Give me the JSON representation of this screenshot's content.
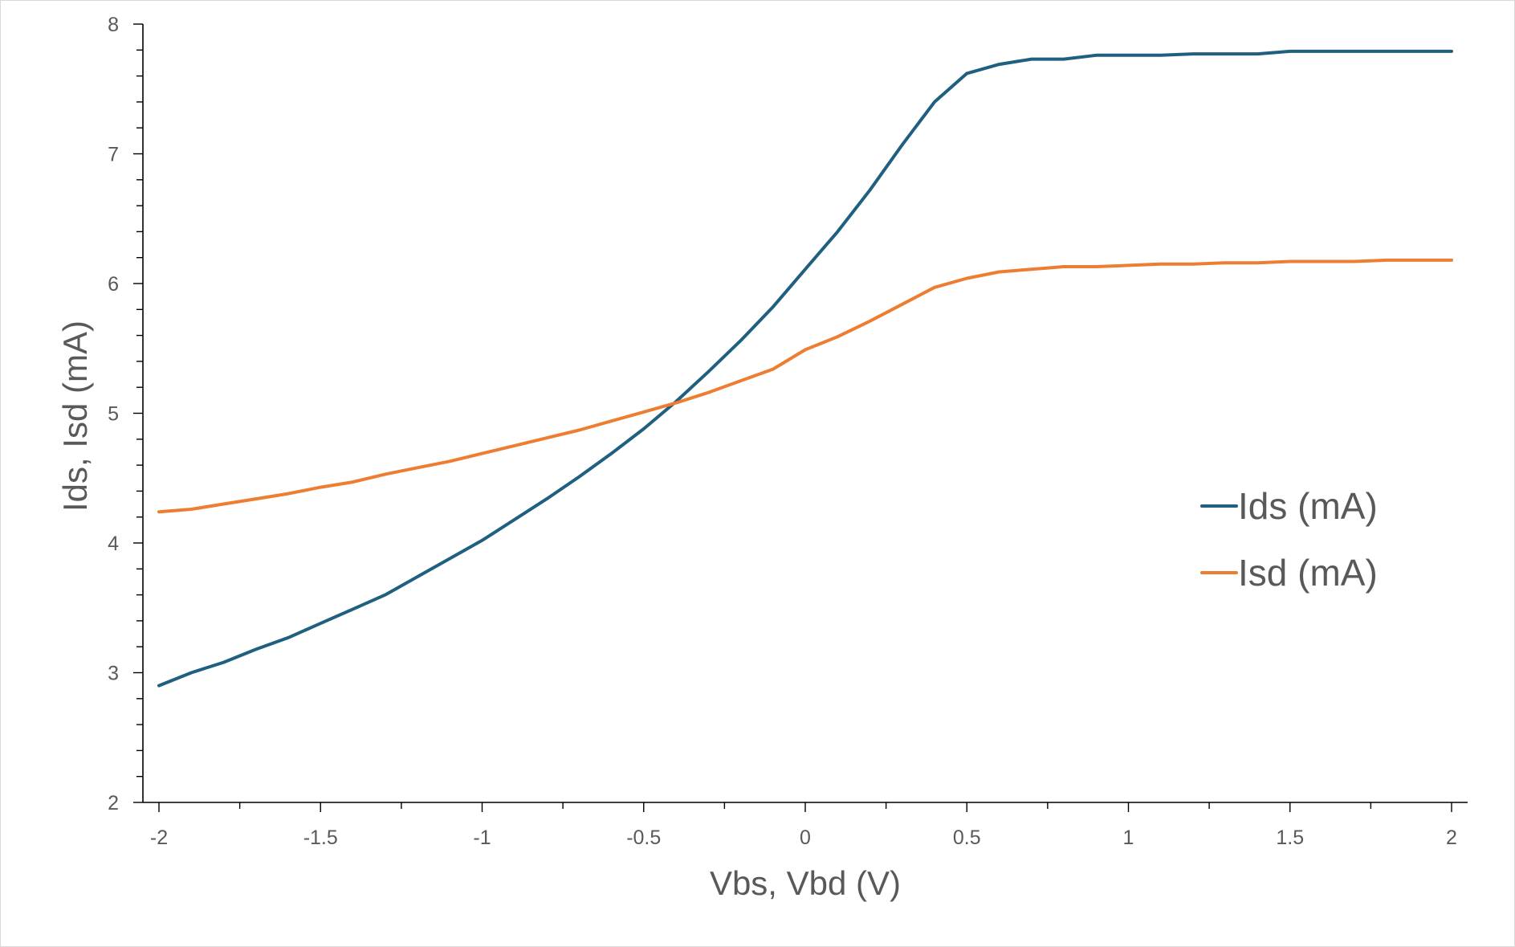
{
  "chart_data": {
    "type": "line",
    "xlabel": "Vbs, Vbd (V)",
    "ylabel": "Ids, Isd (mA)",
    "xlim": [
      -2,
      2
    ],
    "ylim": [
      2,
      8
    ],
    "x_ticks": [
      "-2",
      "-1.5",
      "-1",
      "-0.5",
      "0",
      "0.5",
      "1",
      "1.5",
      "2"
    ],
    "y_ticks": [
      "2",
      "3",
      "4",
      "5",
      "6",
      "7",
      "8"
    ],
    "grid": false,
    "legend_position": "right",
    "x": [
      -2.0,
      -1.9,
      -1.8,
      -1.7,
      -1.6,
      -1.5,
      -1.4,
      -1.3,
      -1.2,
      -1.1,
      -1.0,
      -0.9,
      -0.8,
      -0.7,
      -0.6,
      -0.5,
      -0.4,
      -0.3,
      -0.2,
      -0.1,
      0.0,
      0.1,
      0.2,
      0.3,
      0.4,
      0.5,
      0.6,
      0.7,
      0.8,
      0.9,
      1.0,
      1.1,
      1.2,
      1.3,
      1.4,
      1.5,
      1.6,
      1.7,
      1.8,
      1.9,
      2.0
    ],
    "series": [
      {
        "name": "Ids (mA)",
        "color": "#1f5f7f",
        "values": [
          2.9,
          3.0,
          3.08,
          3.18,
          3.27,
          3.38,
          3.49,
          3.6,
          3.74,
          3.88,
          4.02,
          4.18,
          4.34,
          4.51,
          4.69,
          4.88,
          5.09,
          5.32,
          5.56,
          5.82,
          6.11,
          6.4,
          6.72,
          7.07,
          7.4,
          7.62,
          7.69,
          7.73,
          7.73,
          7.76,
          7.76,
          7.76,
          7.77,
          7.77,
          7.77,
          7.79,
          7.79,
          7.79,
          7.79,
          7.79,
          7.79
        ]
      },
      {
        "name": "Isd (mA)",
        "color": "#ed7d31",
        "values": [
          4.24,
          4.26,
          4.3,
          4.34,
          4.38,
          4.43,
          4.47,
          4.53,
          4.58,
          4.63,
          4.69,
          4.75,
          4.81,
          4.87,
          4.94,
          5.01,
          5.08,
          5.16,
          5.25,
          5.34,
          5.49,
          5.59,
          5.71,
          5.84,
          5.97,
          6.04,
          6.09,
          6.11,
          6.13,
          6.13,
          6.14,
          6.15,
          6.15,
          6.16,
          6.16,
          6.17,
          6.17,
          6.17,
          6.18,
          6.18,
          6.18
        ]
      }
    ]
  }
}
